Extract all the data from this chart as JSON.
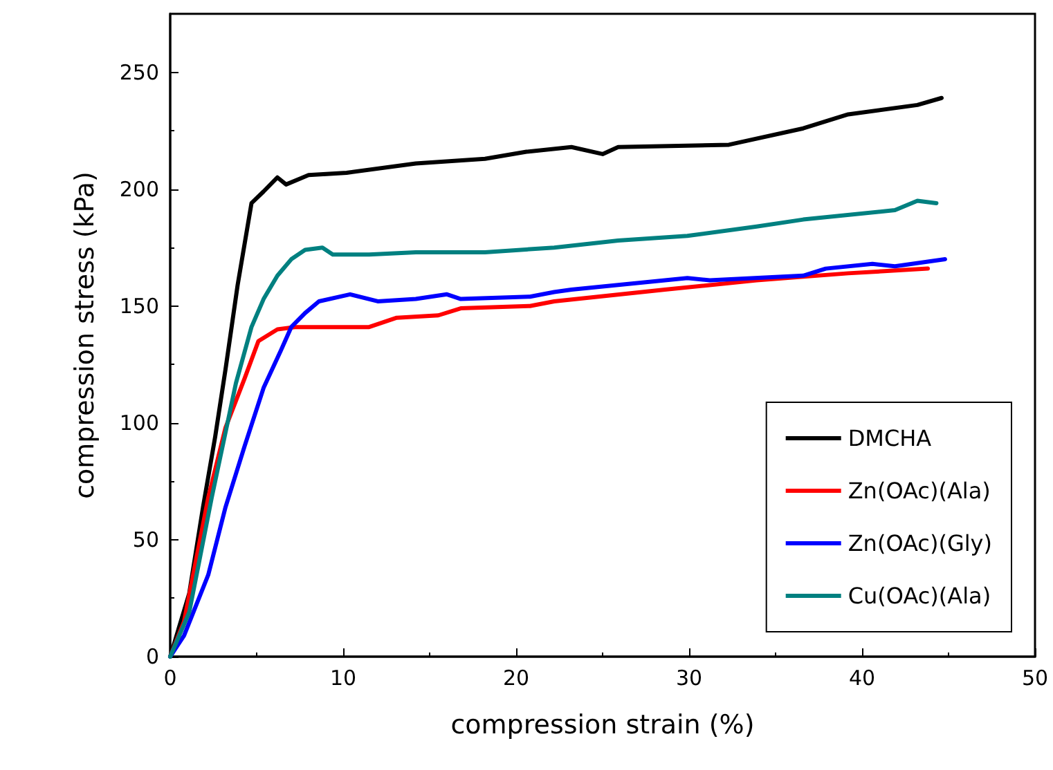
{
  "chart_data": {
    "type": "line",
    "xlabel": "compression strain (%)",
    "ylabel": "compression stress (kPa)",
    "xlim": [
      0,
      50
    ],
    "xticks": [
      0,
      10,
      20,
      30,
      40,
      50
    ],
    "ylim": [
      0,
      275
    ],
    "yticks": [
      0,
      50,
      100,
      150,
      200,
      250
    ],
    "grid": false,
    "legend": "bottom right",
    "marker": "none",
    "line_style": "solid",
    "series": [
      {
        "name": "DMCHA",
        "color": "#000000",
        "x": [
          0,
          1.1,
          1.9,
          2.6,
          3.2,
          3.9,
          4.7,
          5.4,
          6.2,
          6.7,
          8.0,
          10.2,
          14.2,
          18.2,
          20.6,
          23.2,
          25,
          25.9,
          32.3,
          36.6,
          39.2,
          43.2,
          44.6
        ],
        "values": [
          0,
          27,
          64,
          94,
          123,
          159,
          194,
          199,
          205,
          202,
          206,
          207,
          211,
          213,
          216,
          218,
          215,
          218,
          219,
          226,
          232,
          236,
          239
        ]
      },
      {
        "name": "Zn(OAc)(Ala)",
        "color": "#ff0000",
        "x": [
          0,
          0.8,
          2.2,
          3.2,
          4.3,
          5.1,
          6.2,
          7.2,
          10.2,
          11.5,
          13.1,
          15.5,
          16.8,
          20.8,
          22.2,
          28.6,
          33.9,
          39.2,
          43.8
        ],
        "values": [
          0,
          15,
          68,
          98,
          119,
          135,
          140,
          141,
          141,
          141,
          145,
          146,
          149,
          150,
          152,
          157,
          161,
          164,
          166
        ]
      },
      {
        "name": "Zn(OAc)(Gly)",
        "color": "#0000ff",
        "x": [
          0,
          0.8,
          2.2,
          3.2,
          4.3,
          5.4,
          6.4,
          7.0,
          7.8,
          8.6,
          10.4,
          12.0,
          14.2,
          16.0,
          16.8,
          20.8,
          22.2,
          23.2,
          29.9,
          31.2,
          36.6,
          37.9,
          40.6,
          41.9,
          44.8
        ],
        "values": [
          0,
          9,
          35,
          64,
          90,
          115,
          131,
          141,
          147,
          152,
          155,
          152,
          153,
          155,
          153,
          154,
          156,
          157,
          162,
          161,
          163,
          166,
          168,
          167,
          170
        ]
      },
      {
        "name": "Cu(OAc)(Ala)",
        "color": "#008080",
        "x": [
          0,
          1.1,
          2.4,
          3.8,
          4.7,
          5.4,
          6.2,
          7.0,
          7.8,
          8.8,
          9.4,
          11.5,
          14.2,
          18.2,
          22.2,
          25.9,
          29.9,
          33.9,
          36.6,
          41.9,
          43.2,
          44.3
        ],
        "values": [
          0,
          19,
          68,
          117,
          141,
          153,
          163,
          170,
          174,
          175,
          172,
          172,
          173,
          173,
          175,
          178,
          180,
          184,
          187,
          191,
          195,
          194
        ]
      }
    ]
  }
}
